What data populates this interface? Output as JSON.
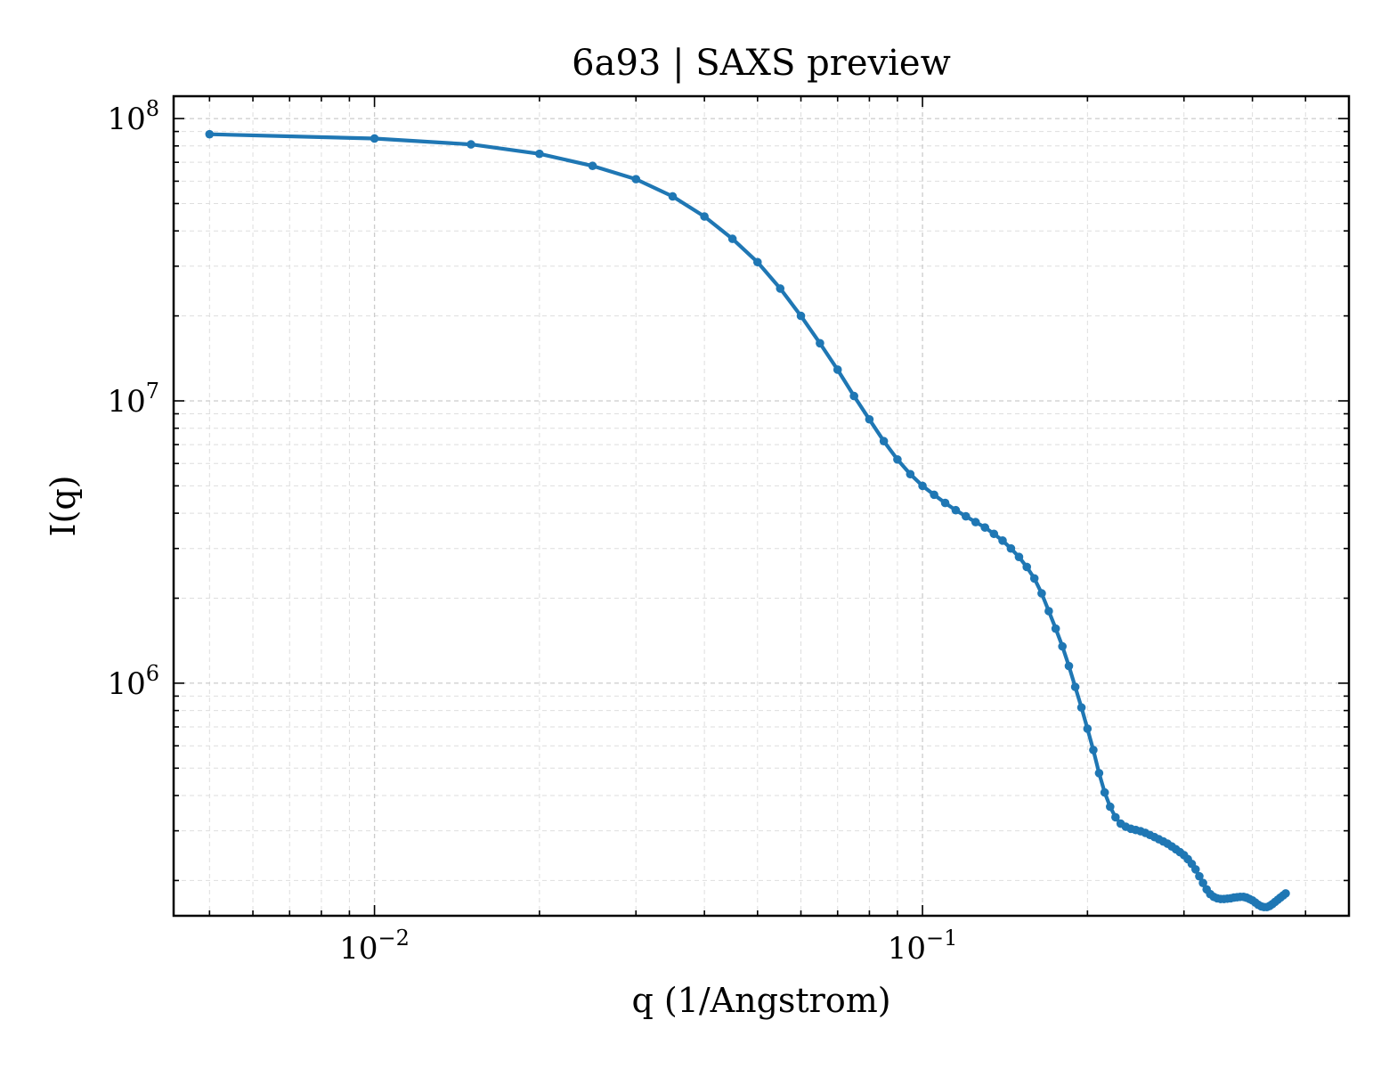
{
  "chart_data": {
    "type": "line",
    "title": "6a93 | SAXS preview",
    "xlabel": "q (1/Angstrom)",
    "ylabel": "I(q)",
    "xscale": "log",
    "yscale": "log",
    "xlim": [
      0.0043,
      0.6
    ],
    "ylim": [
      150000,
      120000000
    ],
    "grid": true,
    "x_ticks": [
      {
        "value": 0.01,
        "mantissa": "10",
        "exponent": "−2"
      },
      {
        "value": 0.1,
        "mantissa": "10",
        "exponent": "−1"
      }
    ],
    "y_ticks": [
      {
        "value": 1000000,
        "mantissa": "10",
        "exponent": "6"
      },
      {
        "value": 10000000,
        "mantissa": "10",
        "exponent": "7"
      },
      {
        "value": 100000000,
        "mantissa": "10",
        "exponent": "8"
      }
    ],
    "series": [
      {
        "color": "#1f77b4",
        "marker": "circle",
        "points": [
          [
            0.005,
            88000000
          ],
          [
            0.01,
            85000000
          ],
          [
            0.015,
            81000000
          ],
          [
            0.02,
            75000000
          ],
          [
            0.025,
            68000000
          ],
          [
            0.03,
            61000000
          ],
          [
            0.035,
            53000000
          ],
          [
            0.04,
            45000000
          ],
          [
            0.045,
            37500000
          ],
          [
            0.05,
            31000000
          ],
          [
            0.055,
            25000000
          ],
          [
            0.06,
            20000000
          ],
          [
            0.065,
            16000000
          ],
          [
            0.07,
            12900000
          ],
          [
            0.075,
            10400000
          ],
          [
            0.08,
            8600000
          ],
          [
            0.085,
            7200000
          ],
          [
            0.09,
            6200000
          ],
          [
            0.095,
            5500000
          ],
          [
            0.1,
            5000000
          ],
          [
            0.105,
            4650000
          ],
          [
            0.11,
            4350000
          ],
          [
            0.115,
            4100000
          ],
          [
            0.12,
            3900000
          ],
          [
            0.125,
            3720000
          ],
          [
            0.13,
            3560000
          ],
          [
            0.135,
            3380000
          ],
          [
            0.14,
            3200000
          ],
          [
            0.145,
            3000000
          ],
          [
            0.15,
            2800000
          ],
          [
            0.155,
            2580000
          ],
          [
            0.16,
            2350000
          ],
          [
            0.165,
            2080000
          ],
          [
            0.17,
            1800000
          ],
          [
            0.175,
            1560000
          ],
          [
            0.18,
            1350000
          ],
          [
            0.185,
            1150000
          ],
          [
            0.19,
            970000
          ],
          [
            0.195,
            820000
          ],
          [
            0.2,
            690000
          ],
          [
            0.205,
            580000
          ],
          [
            0.21,
            480000
          ],
          [
            0.215,
            410000
          ],
          [
            0.22,
            365000
          ],
          [
            0.225,
            335000
          ],
          [
            0.23,
            318000
          ],
          [
            0.235,
            310000
          ],
          [
            0.24,
            305000
          ],
          [
            0.245,
            302000
          ],
          [
            0.25,
            299000
          ],
          [
            0.255,
            295000
          ],
          [
            0.26,
            290000
          ],
          [
            0.265,
            285000
          ],
          [
            0.27,
            280000
          ],
          [
            0.275,
            275000
          ],
          [
            0.28,
            270000
          ],
          [
            0.285,
            264000
          ],
          [
            0.29,
            258000
          ],
          [
            0.295,
            252000
          ],
          [
            0.3,
            246000
          ],
          [
            0.305,
            238000
          ],
          [
            0.31,
            229000
          ],
          [
            0.315,
            219000
          ],
          [
            0.32,
            207000
          ],
          [
            0.325,
            196000
          ],
          [
            0.33,
            186000
          ],
          [
            0.335,
            179000
          ],
          [
            0.34,
            175000
          ],
          [
            0.345,
            173000
          ],
          [
            0.35,
            172000
          ],
          [
            0.355,
            172000
          ],
          [
            0.36,
            172500
          ],
          [
            0.365,
            173000
          ],
          [
            0.37,
            174000
          ],
          [
            0.375,
            174500
          ],
          [
            0.38,
            175000
          ],
          [
            0.385,
            175000
          ],
          [
            0.39,
            174000
          ],
          [
            0.395,
            172000
          ],
          [
            0.4,
            170000
          ],
          [
            0.405,
            167000
          ],
          [
            0.41,
            164000
          ],
          [
            0.415,
            162000
          ],
          [
            0.42,
            161000
          ],
          [
            0.425,
            161000
          ],
          [
            0.43,
            162500
          ],
          [
            0.435,
            165000
          ],
          [
            0.44,
            168000
          ],
          [
            0.445,
            171000
          ],
          [
            0.45,
            174000
          ],
          [
            0.455,
            177000
          ],
          [
            0.46,
            180000
          ]
        ]
      }
    ]
  }
}
